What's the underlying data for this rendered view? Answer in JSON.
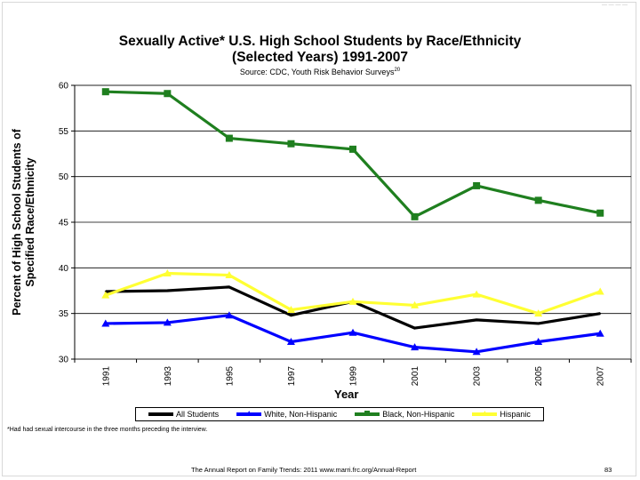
{
  "chart_data": {
    "type": "line",
    "title": "Sexually Active* U.S. High School Students by Race/Ethnicity",
    "subtitle": "(Selected Years) 1991-2007",
    "source": "Source: CDC, Youth Risk Behavior Surveys",
    "source_ref": "20",
    "xlabel": "Year",
    "ylabel_line1": "Percent of High School Students of",
    "ylabel_line2": "Specified Race/Ethnicity",
    "categories": [
      "1991",
      "1993",
      "1995",
      "1997",
      "1999",
      "2001",
      "2003",
      "2005",
      "2007"
    ],
    "ylim": [
      30,
      60
    ],
    "yticks": [
      30,
      35,
      40,
      45,
      50,
      55,
      60
    ],
    "grid": true,
    "legend_position": "bottom",
    "series": [
      {
        "name": "All Students",
        "color": "#000000",
        "marker": "none",
        "values": [
          37.4,
          37.5,
          37.9,
          34.8,
          36.3,
          33.4,
          34.3,
          33.9,
          35.0
        ]
      },
      {
        "name": "White, Non-Hispanic",
        "color": "#0000ff",
        "marker": "triangle",
        "values": [
          33.9,
          34.0,
          34.8,
          31.9,
          32.9,
          31.3,
          30.8,
          31.9,
          32.8
        ]
      },
      {
        "name": "Black, Non-Hispanic",
        "color": "#1f7f1f",
        "marker": "square",
        "values": [
          59.3,
          59.1,
          54.2,
          53.6,
          53.0,
          45.6,
          49.0,
          47.4,
          46.0
        ]
      },
      {
        "name": "Hispanic",
        "color": "#ffff33",
        "marker": "triangle",
        "values": [
          37.0,
          39.4,
          39.2,
          35.4,
          36.3,
          35.9,
          37.1,
          35.0,
          37.4
        ]
      }
    ]
  },
  "footnote": "*Had had sexual intercourse in the three months preceding the interview.",
  "footer": {
    "left": "The Annual Report on Family Trends: 2011    www.marri.frc.org/Annual-Report",
    "page": "83"
  }
}
